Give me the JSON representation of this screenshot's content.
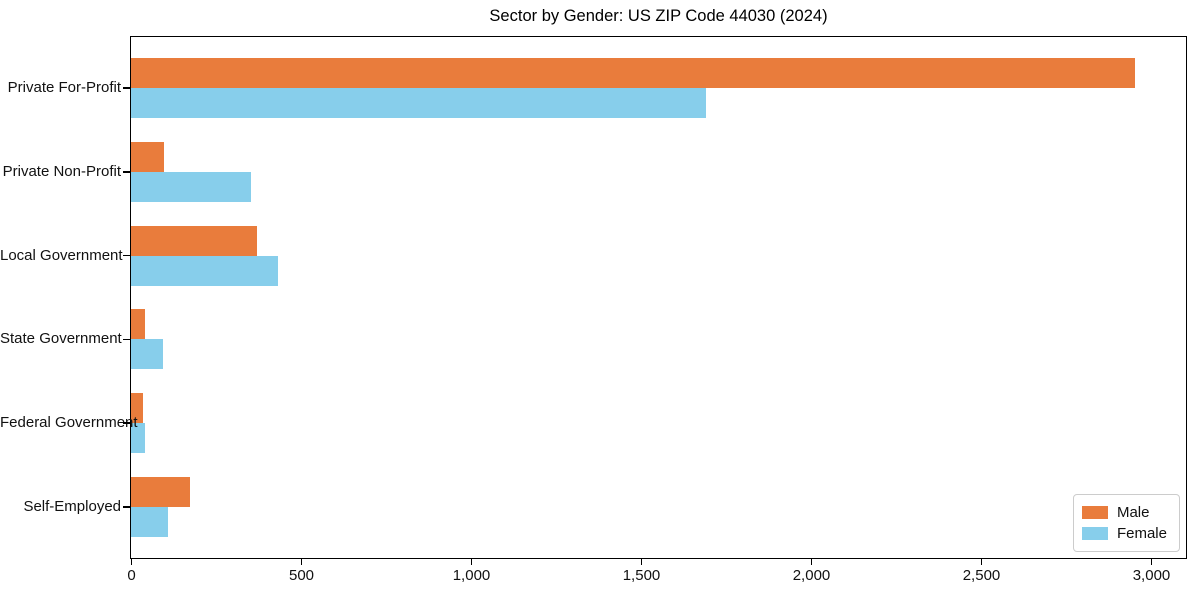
{
  "title": "Sector by Gender: US ZIP Code 44030 (2024)",
  "chart_data": {
    "type": "bar",
    "orientation": "horizontal",
    "title": "Sector by Gender: US ZIP Code 44030 (2024)",
    "categories": [
      "Private For-Profit",
      "Private Non-Profit",
      "Local Government",
      "State Government",
      "Federal Government",
      "Self-Employed"
    ],
    "series": [
      {
        "name": "Male",
        "color": "#E97C3C",
        "values": [
          2950,
          97,
          370,
          41,
          35,
          173
        ]
      },
      {
        "name": "Female",
        "color": "#87CEEB",
        "values": [
          1690,
          352,
          432,
          94,
          41,
          108
        ]
      }
    ],
    "xlim": [
      0,
      3100
    ],
    "xticks": [
      0,
      500,
      1000,
      1500,
      2000,
      2500,
      3000
    ],
    "xtick_labels": [
      "0",
      "500",
      "1,000",
      "1,500",
      "2,000",
      "2,500",
      "3,000"
    ],
    "xlabel": "",
    "ylabel": "",
    "grid": false,
    "legend_position": "lower right"
  }
}
